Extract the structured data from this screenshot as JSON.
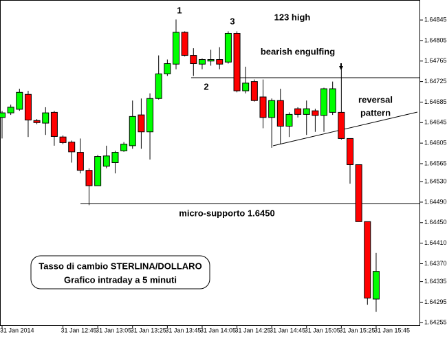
{
  "chart_data": {
    "type": "candlestick",
    "categories": [
      "31 Jan 2014",
      null,
      null,
      null,
      null,
      null,
      null,
      "31 Jan 12:45",
      null,
      null,
      null,
      "31 Jan 13:05",
      null,
      null,
      null,
      "31 Jan 13:25",
      null,
      null,
      null,
      "31 Jan 13:45",
      null,
      null,
      null,
      "31 Jan 14:05",
      null,
      null,
      null,
      "31 Jan 14:25",
      null,
      null,
      null,
      "31 Jan 14:45",
      null,
      null,
      null,
      "31 Jan 15:05",
      null,
      null,
      null,
      "31 Jan 15:25",
      null,
      null,
      null,
      "31 Jan 15:45"
    ],
    "open": [
      1.64655,
      1.64664,
      1.64671,
      1.647,
      1.64649,
      1.64644,
      1.64665,
      1.64617,
      1.64607,
      1.64587,
      1.64552,
      1.64522,
      1.6456,
      1.64567,
      1.6459,
      1.646,
      1.6466,
      1.64627,
      1.64692,
      1.6474,
      1.64759,
      1.64821,
      1.64776,
      1.64759,
      1.64765,
      1.64768,
      1.64763,
      1.64819,
      1.64707,
      1.64725,
      1.64695,
      1.64655,
      1.64688,
      1.64638,
      1.64672,
      1.64661,
      1.64668,
      1.64659,
      1.64665,
      1.64665,
      1.64614,
      1.64563,
      1.64452,
      1.64301
    ],
    "high": [
      1.64668,
      1.6468,
      1.64711,
      1.64707,
      1.64652,
      1.64675,
      1.64668,
      1.6462,
      1.6461,
      1.64614,
      1.64556,
      1.64582,
      1.646,
      1.6459,
      1.64607,
      1.64688,
      1.64692,
      1.64702,
      1.64776,
      1.64768,
      1.64846,
      1.64823,
      1.6479,
      1.6477,
      1.64787,
      1.64792,
      1.64823,
      1.64823,
      1.64754,
      1.64729,
      1.64729,
      1.64692,
      1.64711,
      1.64665,
      1.64675,
      1.64688,
      1.64672,
      1.64713,
      1.64725,
      1.64756,
      1.64614,
      1.64563,
      1.64452,
      1.64391
    ],
    "low": [
      1.64614,
      1.6466,
      1.64668,
      1.64617,
      1.64642,
      1.64621,
      1.646,
      1.64603,
      1.64567,
      1.64546,
      1.64484,
      1.64522,
      1.64556,
      1.64546,
      1.64588,
      1.64594,
      1.64594,
      1.64573,
      1.6469,
      1.64736,
      1.64749,
      1.64774,
      1.64736,
      1.64749,
      1.64756,
      1.64749,
      1.6476,
      1.64704,
      1.64702,
      1.64686,
      1.64634,
      1.64596,
      1.64603,
      1.64617,
      1.64655,
      1.64621,
      1.64627,
      1.64627,
      1.6466,
      1.64612,
      1.64526,
      1.64452,
      1.6429,
      1.64276
    ],
    "close": [
      1.64664,
      1.64675,
      1.64704,
      1.6465,
      1.64645,
      1.64664,
      1.64618,
      1.64606,
      1.64588,
      1.64552,
      1.64522,
      1.64579,
      1.6458,
      1.64587,
      1.64603,
      1.64657,
      1.64627,
      1.64692,
      1.6474,
      1.6476,
      1.64821,
      1.64776,
      1.6476,
      1.64768,
      1.64768,
      1.64759,
      1.64819,
      1.64707,
      1.64722,
      1.64688,
      1.64655,
      1.64688,
      1.64638,
      1.64661,
      1.64661,
      1.64672,
      1.64659,
      1.64711,
      1.64711,
      1.64614,
      1.64563,
      1.64452,
      1.64303,
      1.64355
    ],
    "up_color": "#00ff00",
    "down_color": "#ff0000",
    "ylim": [
      1.6425,
      1.64884
    ],
    "yticks": [
      1.64845,
      1.64805,
      1.64765,
      1.64725,
      1.64685,
      1.64645,
      1.64605,
      1.64565,
      {
        "value": 1.6453,
        "label": "1.64530"
      },
      {
        "value": 1.6449,
        "label": "1.64490"
      },
      {
        "value": 1.6445,
        "label": "1.64450"
      },
      {
        "value": 1.6441,
        "label": "1.64410"
      },
      {
        "value": 1.6437,
        "label": "1.64370"
      },
      1.64335,
      1.64295,
      1.64255
    ],
    "grid": false,
    "annotations": [
      "1",
      "2",
      "3",
      "123 high",
      "bearish engulfing",
      "reversal",
      "pattern",
      "micro-supporto 1.6450"
    ],
    "box_text": [
      "Tasso di cambio STERLINA/DOLLARO",
      "Grafico intraday a 5 minuti"
    ]
  }
}
